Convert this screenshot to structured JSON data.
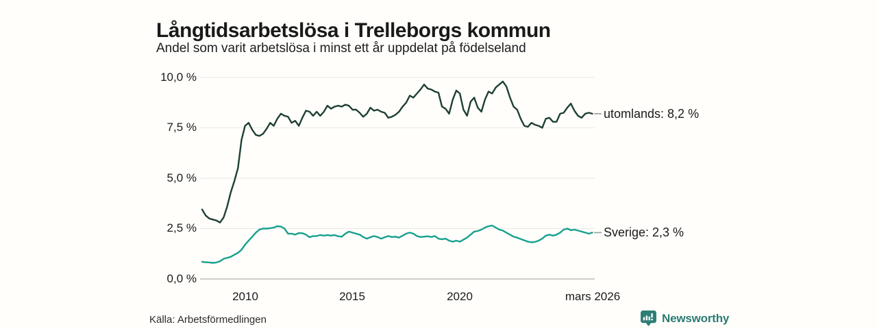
{
  "title": "Långtidsarbetslösa i Trelleborgs kommun",
  "subtitle": "Andel som varit arbetslösa i minst ett år uppdelat på födelseland",
  "source": "Källa: Arbetsförmedlingen",
  "brand": {
    "name": "Newsworthy",
    "color": "#2E7E76"
  },
  "colors": {
    "background": "#FFFEFB",
    "text": "#1A1A1A",
    "gridline": "#E7E7E5",
    "baseline": "#BDBDBB",
    "label_dash": "#999999",
    "utomlands_line": "#1E3F33",
    "sverige_line": "#17A08D"
  },
  "chart_data": {
    "type": "line",
    "title": "Långtidsarbetslösa i Trelleborgs kommun",
    "subtitle": "Andel som varit arbetslösa i minst ett år uppdelat på födelseland",
    "unit": "%",
    "grid": true,
    "legend_position": "right-end-labels",
    "x_start": 2008.0,
    "x_step": 0.16667,
    "x_end_label": "mars 2026",
    "ylim": [
      0,
      10
    ],
    "yaxis": {
      "ticks": [
        {
          "value": 10.0,
          "label": "10,0 %"
        },
        {
          "value": 7.5,
          "label": "7,5 %"
        },
        {
          "value": 5.0,
          "label": "5,0 %"
        },
        {
          "value": 2.5,
          "label": "2,5 %"
        },
        {
          "value": 0.0,
          "label": "0,0 %"
        }
      ]
    },
    "xaxis": {
      "ticks": [
        {
          "value": 2010,
          "label": "2010"
        },
        {
          "value": 2015,
          "label": "2015"
        },
        {
          "value": 2020,
          "label": "2020"
        },
        {
          "value": 2026.17,
          "label": "mars 2026"
        }
      ]
    },
    "series": [
      {
        "name": "utomlands",
        "color": "#1E3F33",
        "latest_value": 8.2,
        "end_label": "utomlands: 8,2 %",
        "values": [
          3.45,
          3.15,
          3.0,
          2.95,
          2.9,
          2.8,
          3.05,
          3.6,
          4.3,
          4.85,
          5.5,
          6.9,
          7.6,
          7.75,
          7.4,
          7.15,
          7.1,
          7.2,
          7.45,
          7.75,
          7.6,
          7.95,
          8.2,
          8.1,
          8.05,
          7.75,
          7.85,
          7.6,
          8.0,
          8.35,
          8.3,
          8.1,
          8.3,
          8.1,
          8.3,
          8.6,
          8.45,
          8.55,
          8.6,
          8.55,
          8.65,
          8.6,
          8.4,
          8.4,
          8.25,
          8.05,
          8.2,
          8.5,
          8.35,
          8.4,
          8.3,
          8.25,
          8.0,
          8.05,
          8.15,
          8.3,
          8.55,
          8.75,
          9.1,
          9.0,
          9.2,
          9.4,
          9.65,
          9.45,
          9.4,
          9.3,
          9.25,
          8.55,
          8.45,
          8.2,
          8.9,
          9.35,
          9.2,
          8.4,
          8.1,
          8.8,
          9.0,
          8.5,
          8.3,
          8.9,
          9.3,
          9.2,
          9.5,
          9.65,
          9.8,
          9.55,
          9.0,
          8.55,
          8.4,
          7.95,
          7.6,
          7.55,
          7.75,
          7.65,
          7.6,
          7.5,
          7.95,
          8.0,
          7.8,
          7.8,
          8.2,
          8.25,
          8.5,
          8.7,
          8.35,
          8.1,
          8.0,
          8.2,
          8.25,
          8.2
        ]
      },
      {
        "name": "Sverige",
        "color": "#17A08D",
        "latest_value": 2.3,
        "end_label": "Sverige: 2,3 %",
        "values": [
          0.85,
          0.83,
          0.82,
          0.8,
          0.82,
          0.88,
          1.0,
          1.05,
          1.1,
          1.2,
          1.3,
          1.45,
          1.7,
          1.9,
          2.1,
          2.3,
          2.45,
          2.5,
          2.5,
          2.52,
          2.55,
          2.62,
          2.6,
          2.5,
          2.25,
          2.25,
          2.2,
          2.28,
          2.27,
          2.2,
          2.07,
          2.13,
          2.13,
          2.18,
          2.15,
          2.18,
          2.15,
          2.18,
          2.12,
          2.1,
          2.25,
          2.35,
          2.3,
          2.25,
          2.2,
          2.08,
          2.0,
          2.07,
          2.13,
          2.08,
          2.0,
          2.07,
          2.13,
          2.08,
          2.1,
          2.05,
          2.15,
          2.25,
          2.3,
          2.25,
          2.13,
          2.08,
          2.1,
          2.12,
          2.08,
          2.13,
          2.0,
          1.97,
          2.0,
          1.9,
          1.85,
          1.9,
          1.85,
          1.95,
          2.05,
          2.2,
          2.35,
          2.38,
          2.45,
          2.55,
          2.62,
          2.65,
          2.55,
          2.45,
          2.4,
          2.3,
          2.2,
          2.1,
          2.05,
          1.98,
          1.92,
          1.85,
          1.82,
          1.84,
          1.9,
          2.0,
          2.15,
          2.2,
          2.15,
          2.2,
          2.3,
          2.45,
          2.5,
          2.42,
          2.45,
          2.4,
          2.35,
          2.3,
          2.25,
          2.3
        ]
      }
    ]
  }
}
